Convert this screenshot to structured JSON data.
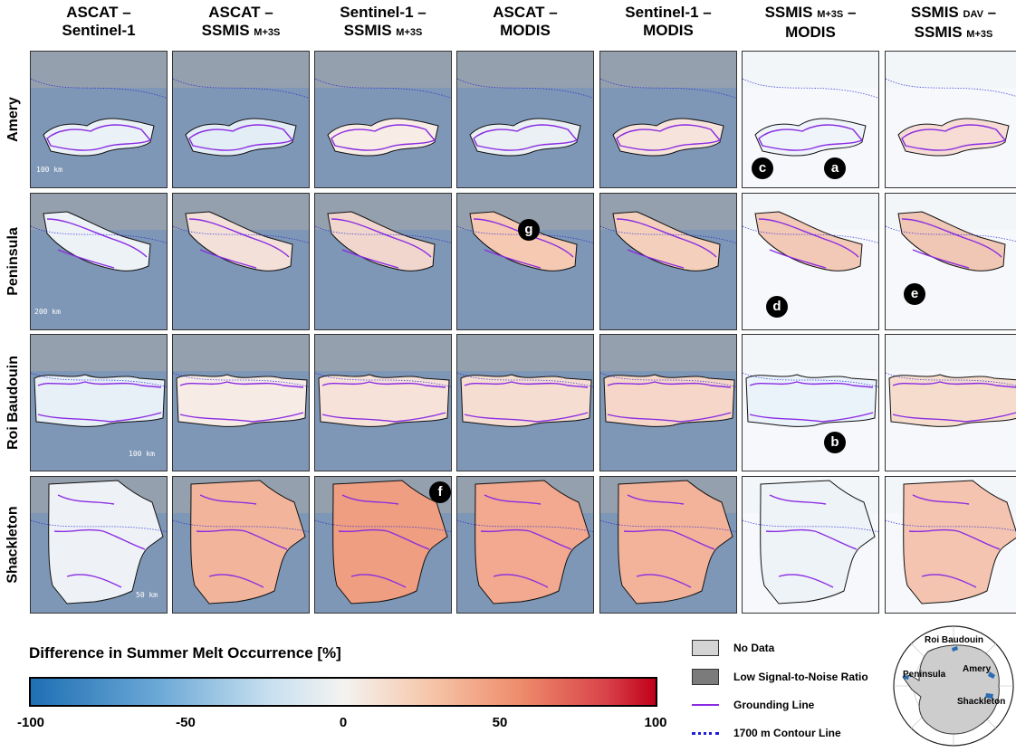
{
  "columns": [
    {
      "line1": "ASCAT –",
      "line2": "Sentinel-1",
      "sub": ""
    },
    {
      "line1": "ASCAT –",
      "line2": "SSMIS ",
      "sub": "M+3S"
    },
    {
      "line1": "Sentinel-1 –",
      "line2": "SSMIS ",
      "sub": "M+3S"
    },
    {
      "line1": "ASCAT –",
      "line2": "MODIS",
      "sub": ""
    },
    {
      "line1": "Sentinel-1 –",
      "line2": "MODIS",
      "sub": ""
    },
    {
      "line1": "SSMIS ",
      "sub1": "M+3S",
      "line1b": " –",
      "line2": "MODIS",
      "sub": ""
    },
    {
      "line1": "SSMIS ",
      "sub1": "DAV",
      "line1b": " –",
      "line2": "SSMIS ",
      "sub": "M+3S"
    }
  ],
  "rows": [
    "Amery",
    "Peninsula",
    "Roi Baudouin",
    "Shackleton"
  ],
  "scale_bars": [
    "100 km",
    "200 km",
    "100 km",
    "50 km"
  ],
  "markers": [
    "a",
    "b",
    "c",
    "d",
    "e",
    "f",
    "g"
  ],
  "legend": {
    "title": "Difference in Summer Melt Occurrence [%]",
    "ticks": [
      "-100",
      "-50",
      "0",
      "50",
      "100"
    ],
    "items": {
      "no_data": "No Data",
      "low_snr": "Low Signal-to-Noise Ratio",
      "grounding": "Grounding Line",
      "contour": "1700 m Contour Line"
    }
  },
  "inset": {
    "roi": "Roi Baudouin",
    "peninsula": "Peninsula",
    "amery": "Amery",
    "shackleton": "Shackleton"
  },
  "colors": {
    "grounding": "#8a2be2",
    "contour": "#1d1dd6",
    "no_data": "#d4d4d4",
    "low_snr": "#7b7b7b",
    "ocean": "#7f97b6"
  }
}
